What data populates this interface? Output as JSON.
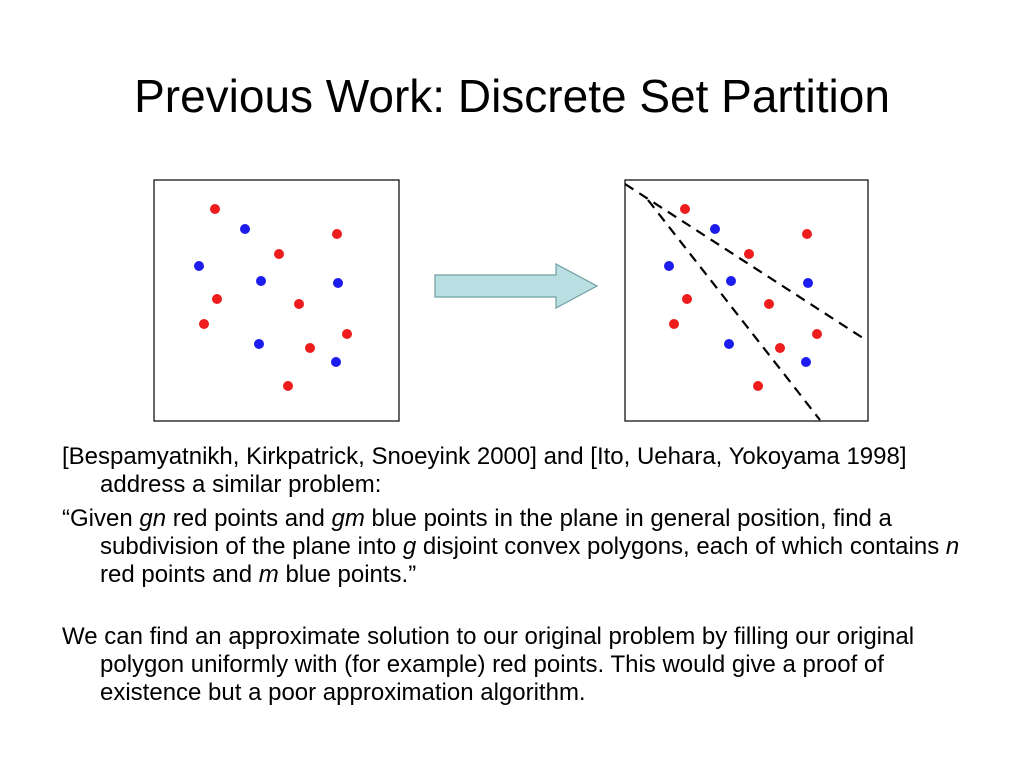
{
  "slide": {
    "title": "Previous Work: Discrete Set Partition"
  },
  "figure": {
    "colors": {
      "red": "#ee1c1c",
      "blue": "#1c1cee",
      "arrow_fill": "#b9dfe2",
      "arrow_stroke": "#6f9fa3"
    }
  },
  "paragraphs": {
    "p1": "[Bespamyatnikh, Kirkpatrick, Snoeyink 2000] and [Ito, Uehara, Yokoyama 1998] address a similar problem:",
    "p2": {
      "a": "“Given ",
      "gn": "gn",
      "b": " red points and ",
      "gm": "gm",
      "c": " blue points in the plane in general position, find a subdivision of the plane into ",
      "g": "g",
      "d": " disjoint convex polygons, each of which contains ",
      "n": "n",
      "e": " red points and ",
      "m": "m",
      "f": " blue points.”"
    },
    "p3": "We can find an approximate solution to our original problem by filling our original polygon uniformly with (for example) red points. This would give a proof of existence but a poor approximation algorithm."
  }
}
